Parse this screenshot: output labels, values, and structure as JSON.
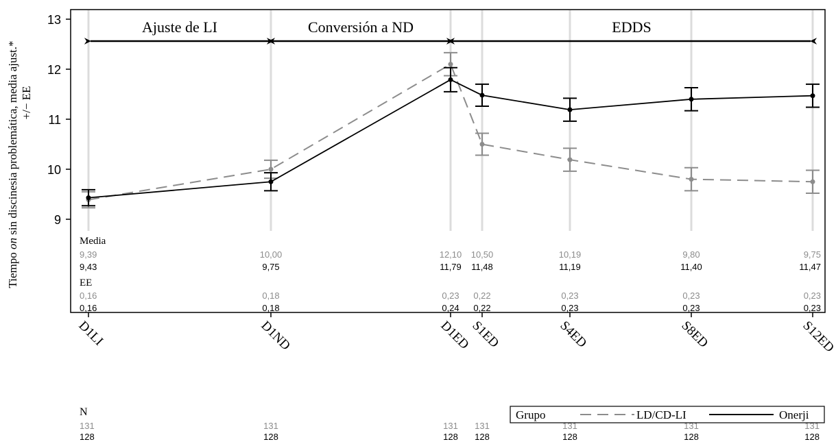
{
  "chart_data": {
    "type": "line",
    "ylabel_parts": [
      "Tiempo ",
      "on",
      " sin discinesia problemática, media ajust.*"
    ],
    "ylabel_line2": "+/− EE",
    "ylim": [
      8.7,
      13.1
    ],
    "yticks": [
      "9",
      "10",
      "11",
      "12",
      "13"
    ],
    "grid": true,
    "categories": [
      "D1LI",
      "D1ND",
      "D1ED",
      "S1ED",
      "S4ED",
      "S8ED",
      "S12ED"
    ],
    "phases": [
      {
        "label": "Ajuste de LI",
        "from": "D1LI",
        "to": "D1ND"
      },
      {
        "label": "Conversión a ND",
        "from": "D1ND",
        "to": "D1ED"
      },
      {
        "label": "EDDS",
        "from": "D1ED",
        "to": "S12ED"
      }
    ],
    "series": [
      {
        "name": "LD/CD-LI",
        "color": "#8c8c8c",
        "dash": true,
        "values": [
          9.39,
          10.0,
          12.1,
          10.5,
          10.19,
          9.8,
          9.75
        ],
        "se": [
          0.16,
          0.18,
          0.23,
          0.22,
          0.23,
          0.23,
          0.23
        ],
        "mean_labels": [
          "9,39",
          "10,00",
          "12,10",
          "10,50",
          "10,19",
          "9,80",
          "9,75"
        ],
        "se_labels": [
          "0,16",
          "0,18",
          "0,23",
          "0,22",
          "0,23",
          "0,23",
          "0,23"
        ],
        "n": [
          "131",
          "131",
          "131",
          "131",
          "131",
          "131",
          "131"
        ]
      },
      {
        "name": "Onerji",
        "color": "#000000",
        "dash": false,
        "values": [
          9.43,
          9.75,
          11.79,
          11.48,
          11.19,
          11.4,
          11.47
        ],
        "se": [
          0.16,
          0.18,
          0.24,
          0.22,
          0.23,
          0.23,
          0.23
        ],
        "mean_labels": [
          "9,43",
          "9,75",
          "11,79",
          "11,48",
          "11,19",
          "11,40",
          "11,47"
        ],
        "se_labels": [
          "0,16",
          "0,18",
          "0,24",
          "0,22",
          "0,23",
          "0,23",
          "0,23"
        ],
        "n": [
          "128",
          "128",
          "128",
          "128",
          "128",
          "128",
          "128"
        ]
      }
    ],
    "table_labels": {
      "mean": "Media",
      "se": "EE",
      "n": "N"
    },
    "legend": {
      "title": "Grupo",
      "placement": "bottom-right"
    }
  }
}
